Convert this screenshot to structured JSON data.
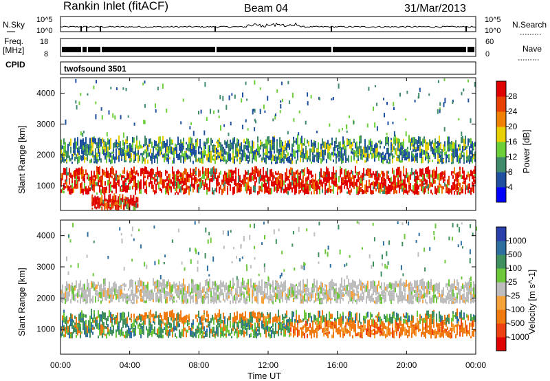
{
  "header": {
    "title": "Rankin Inlet (fitACF)",
    "beam": "Beam 04",
    "date": "31/Mar/2013"
  },
  "top_panels": {
    "nsky_label": "N.Sky",
    "nsearch_label": "N.Search",
    "nsky_ticks": [
      "10^5",
      "10^0"
    ],
    "nsearch_ticks": [
      "10^5",
      "10^0"
    ],
    "freq_label_1": "Freq.",
    "freq_label_2": "[MHz]",
    "freq_ticks": [
      "18",
      "8"
    ],
    "nave_label": "Nave",
    "nave_ticks": [
      "60",
      "0"
    ],
    "cpid_label": "CPID",
    "cpid_value": "twofsound 3501"
  },
  "chart_data": [
    {
      "type": "heatmap",
      "panel": "power",
      "ylabel": "Slant Range [km]",
      "xlabel": "",
      "yticks": [
        "1000",
        "2000",
        "3000",
        "4000"
      ],
      "ylim": [
        200,
        4500
      ],
      "xlim": [
        0,
        24
      ],
      "colorbar_label": "Power [dB]",
      "colorbar_ticks": [
        "4",
        "8",
        "12",
        "16",
        "20",
        "24",
        "28"
      ],
      "colorbar_colors": [
        "#0000ff",
        "#1f4f9f",
        "#3f8a6a",
        "#6ccf3a",
        "#e8d000",
        "#f08000",
        "#e84000",
        "#e00000"
      ],
      "bands": [
        {
          "range_km": [
            700,
            1400
          ],
          "t_start": 0,
          "t_end": 24,
          "level": "high"
        },
        {
          "range_km": [
            1700,
            2400
          ],
          "t_start": 0,
          "t_end": 24,
          "level": "medium"
        },
        {
          "range_km": [
            200,
            500
          ],
          "t_start": 1.8,
          "t_end": 4.5,
          "level": "high"
        }
      ]
    },
    {
      "type": "heatmap",
      "panel": "velocity",
      "ylabel": "Slant Range [km]",
      "xlabel": "Time UT",
      "yticks": [
        "1000",
        "2000",
        "3000",
        "4000"
      ],
      "xticks": [
        "00:00",
        "04:00",
        "08:00",
        "12:00",
        "16:00",
        "20:00",
        "00:00"
      ],
      "ylim": [
        200,
        4500
      ],
      "xlim": [
        0,
        24
      ],
      "colorbar_label": "Velocity [m s^-1]",
      "colorbar_ticks": [
        "1000",
        "500",
        "100",
        "25",
        "-25",
        "-100",
        "-500",
        "-1000"
      ],
      "colorbar_colors": [
        "#2a3faa",
        "#2f6fa0",
        "#3f8f5f",
        "#6cc83a",
        "#bdbdbd",
        "#f5a23a",
        "#f07a10",
        "#ee4010",
        "#e00000"
      ],
      "bands": [
        {
          "range_km": [
            700,
            1400
          ],
          "t_start": 0,
          "t_end": 24,
          "level": "mixed"
        },
        {
          "range_km": [
            1800,
            2400
          ],
          "t_start": 0,
          "t_end": 24,
          "level": "near-zero"
        }
      ]
    }
  ]
}
